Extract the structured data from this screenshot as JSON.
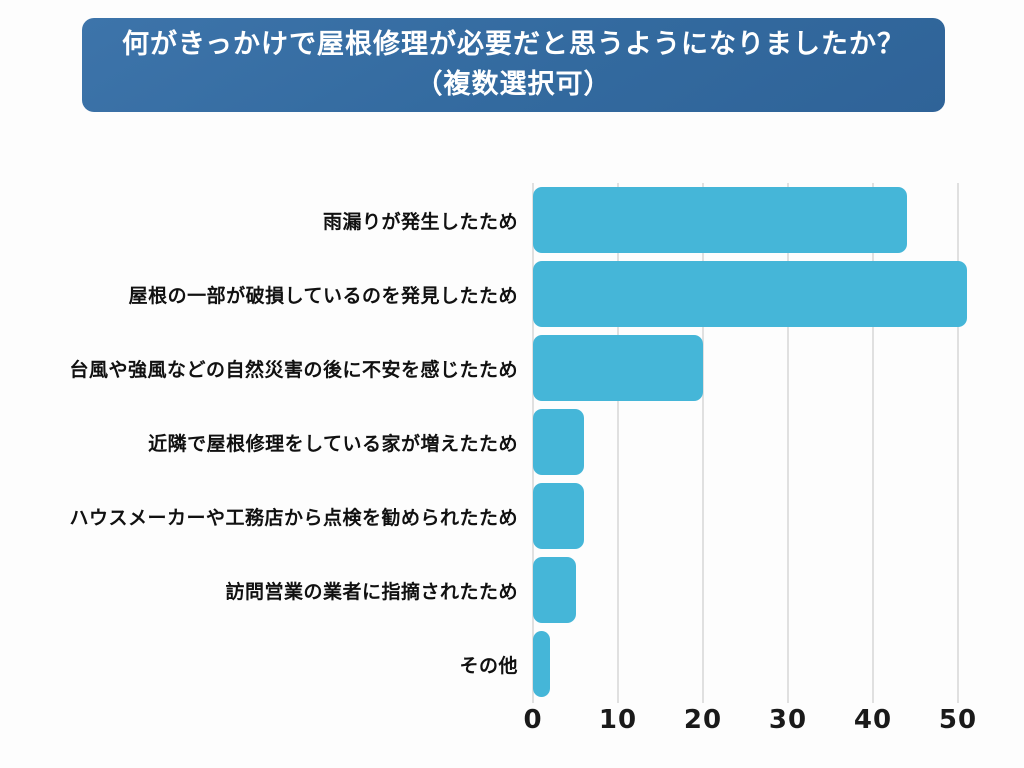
{
  "page": {
    "background_color": "#fdfdfd"
  },
  "title_banner": {
    "line1": "何がきっかけで屋根修理が必要だと思うようになりましたか？",
    "line2": "（複数選択可）",
    "background_color": "#336a9f",
    "text_color": "#ffffff"
  },
  "chart_data": {
    "type": "bar",
    "orientation": "horizontal",
    "title": "何がきっかけで屋根修理が必要だと思うようになりましたか？（複数選択可）",
    "categories": [
      "雨漏りが発生したため",
      "屋根の一部が破損しているのを発見したため",
      "台風や強風などの自然災害の後に不安を感じたため",
      "近隣で屋根修理をしている家が増えたため",
      "ハウスメーカーや工務店から点検を勧められたため",
      "訪問営業の業者に指摘されたため",
      "その他"
    ],
    "values": [
      44,
      51,
      20,
      6,
      6,
      5,
      2
    ],
    "xlabel": "",
    "ylabel": "",
    "xticks": [
      0,
      10,
      20,
      30,
      40,
      50
    ],
    "xlim": [
      0,
      52
    ],
    "grid": true,
    "gridline_color": "#e0e0e0",
    "bar_color": "#45b6d8",
    "axis_text_color": "#1a1a1a",
    "legend": false
  }
}
